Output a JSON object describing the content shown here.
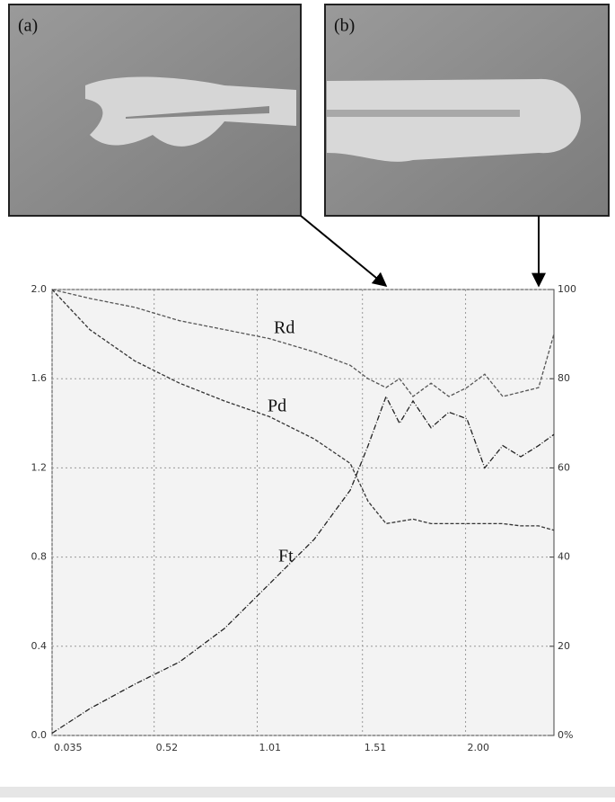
{
  "panels": [
    "(a)",
    "(b)"
  ],
  "chart_data": {
    "type": "line",
    "x": [
      0.035,
      0.214,
      0.428,
      0.641,
      0.854,
      1.068,
      1.281,
      1.452,
      1.537,
      1.622,
      1.686,
      1.75,
      1.836,
      1.921,
      2.006,
      2.091,
      2.177,
      2.262,
      2.347,
      2.42
    ],
    "xlim": [
      0.035,
      2.42
    ],
    "xticks": [
      {
        "value": 0.035,
        "label": "0.035"
      },
      {
        "value": 0.52,
        "label": "0.52"
      },
      {
        "value": 1.01,
        "label": "1.01"
      },
      {
        "value": 1.51,
        "label": "1.51"
      },
      {
        "value": 2.0,
        "label": "2.00"
      }
    ],
    "ylim": [
      0,
      2
    ],
    "yticks": [
      {
        "value": 0,
        "label": "0.0"
      },
      0.4,
      0.8,
      1.2,
      1.6,
      {
        "value": 2,
        "label": "2.0"
      }
    ],
    "y2lim": [
      0,
      100
    ],
    "y2ticks": [
      {
        "value": 0,
        "label": "0%"
      },
      20,
      40,
      60,
      80,
      100
    ],
    "grid": true,
    "series": [
      {
        "name": "Rd",
        "color": "#555555",
        "axis": "y2",
        "values": [
          100,
          98,
          96,
          93,
          91,
          89,
          86,
          83,
          80,
          78,
          80,
          76,
          79,
          76,
          78,
          81,
          76,
          77,
          78,
          90
        ]
      },
      {
        "name": "Pd",
        "color": "#333333",
        "values": [
          2.0,
          1.82,
          1.68,
          1.58,
          1.5,
          1.43,
          1.33,
          1.22,
          1.05,
          0.95,
          0.96,
          0.97,
          0.95,
          0.95,
          0.95,
          0.95,
          0.95,
          0.94,
          0.94,
          0.92
        ]
      },
      {
        "name": "Ft",
        "color": "#222222",
        "values": [
          0.01,
          0.12,
          0.23,
          0.33,
          0.48,
          0.68,
          0.88,
          1.1,
          1.3,
          1.52,
          1.4,
          1.5,
          1.38,
          1.45,
          1.42,
          1.2,
          1.3,
          1.25,
          1.3,
          1.35
        ]
      }
    ]
  }
}
